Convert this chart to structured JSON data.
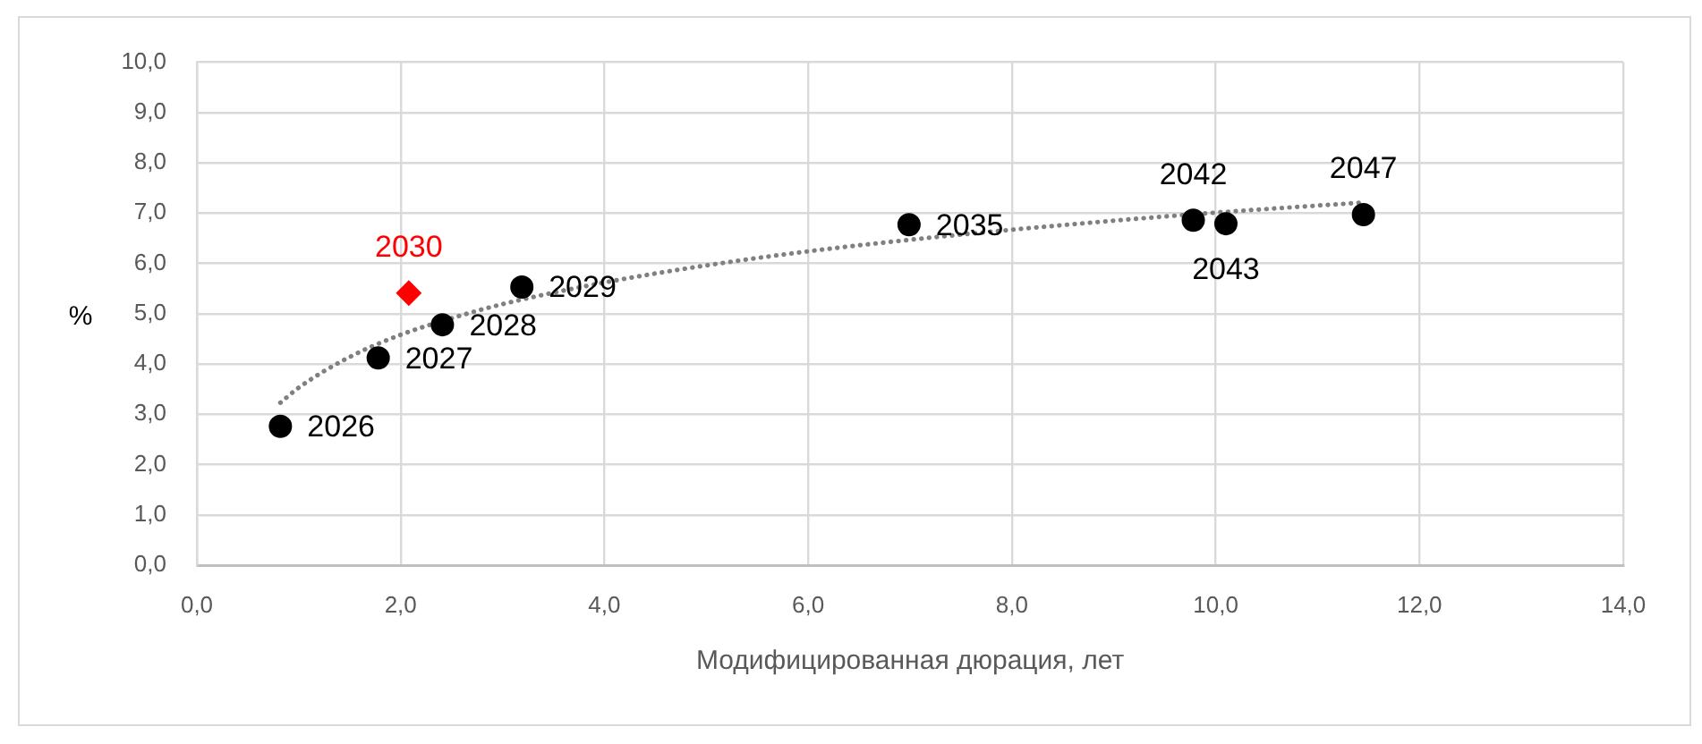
{
  "chart_data": {
    "type": "scatter",
    "xlabel": "Модифицированная дюрация, лет",
    "ylabel": "%",
    "xlim": [
      0,
      14
    ],
    "xticks": [
      {
        "value": 0,
        "label": "0,0"
      },
      {
        "value": 2,
        "label": "2,0"
      },
      {
        "value": 4,
        "label": "4,0"
      },
      {
        "value": 6,
        "label": "6,0"
      },
      {
        "value": 8,
        "label": "8,0"
      },
      {
        "value": 10,
        "label": "10,0"
      },
      {
        "value": 12,
        "label": "12,0"
      },
      {
        "value": 14,
        "label": "14,0"
      }
    ],
    "ylim": [
      0,
      10
    ],
    "yticks": [
      {
        "value": 0,
        "label": "0,0"
      },
      {
        "value": 1,
        "label": "1,0"
      },
      {
        "value": 2,
        "label": "2,0"
      },
      {
        "value": 3,
        "label": "3,0"
      },
      {
        "value": 4,
        "label": "4,0"
      },
      {
        "value": 5,
        "label": "5,0"
      },
      {
        "value": 6,
        "label": "6,0"
      },
      {
        "value": 7,
        "label": "7,0"
      },
      {
        "value": 8,
        "label": "8,0"
      },
      {
        "value": 9,
        "label": "9,0"
      },
      {
        "value": 10,
        "label": "10,0"
      }
    ],
    "grid": true,
    "series": [
      {
        "color": "#000000",
        "marker": "circle",
        "x": [
          0.82,
          1.78,
          2.41,
          3.19,
          6.99,
          9.78,
          10.1,
          11.45
        ],
        "values": [
          2.76,
          4.12,
          4.78,
          5.53,
          6.77,
          6.86,
          6.79,
          6.97
        ]
      },
      {
        "color": "#ff0000",
        "marker": "diamond",
        "x": [
          2.08
        ],
        "values": [
          5.41
        ]
      },
      {
        "type": "line",
        "color": "#808080",
        "line_style": "dotted",
        "marker": "none",
        "x": [
          0.82,
          1,
          1.5,
          2,
          2.5,
          3,
          4,
          5,
          6,
          7,
          8,
          9,
          10,
          11,
          11.45
        ],
        "values": [
          3.23,
          3.53,
          4.14,
          4.58,
          4.91,
          5.19,
          5.62,
          5.96,
          6.24,
          6.47,
          6.67,
          6.85,
          7.01,
          7.15,
          7.21
        ]
      }
    ],
    "annotations": [
      {
        "text": "2026",
        "x": 0.82,
        "y": 2.76
      },
      {
        "text": "2027",
        "x": 1.78,
        "y": 4.12
      },
      {
        "text": "2028",
        "x": 2.41,
        "y": 4.78
      },
      {
        "text": "2029",
        "x": 3.19,
        "y": 5.53
      },
      {
        "text": "2035",
        "x": 6.99,
        "y": 6.77
      },
      {
        "text": "2042",
        "x": 9.78,
        "y": 6.86
      },
      {
        "text": "2043",
        "x": 10.1,
        "y": 6.79
      },
      {
        "text": "2047",
        "x": 11.45,
        "y": 6.97
      },
      {
        "text": "2030",
        "x": 2.08,
        "y": 5.41
      }
    ]
  }
}
